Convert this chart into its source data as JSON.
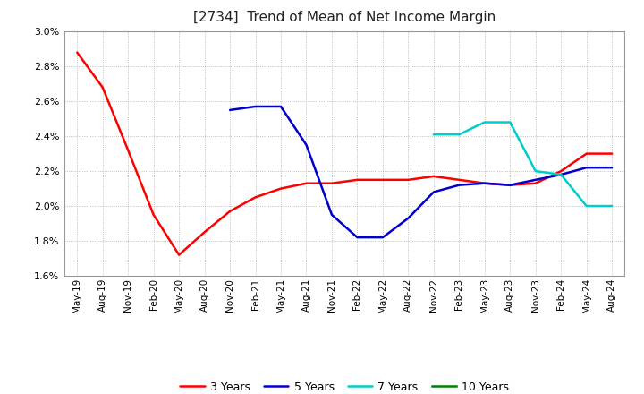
{
  "title": "[2734]  Trend of Mean of Net Income Margin",
  "ylim": [
    0.016,
    0.03
  ],
  "yticks": [
    0.016,
    0.018,
    0.02,
    0.022,
    0.024,
    0.026,
    0.028,
    0.03
  ],
  "x_labels": [
    "May-19",
    "Aug-19",
    "Nov-19",
    "Feb-20",
    "May-20",
    "Aug-20",
    "Nov-20",
    "Feb-21",
    "May-21",
    "Aug-21",
    "Nov-21",
    "Feb-22",
    "May-22",
    "Aug-22",
    "Nov-22",
    "Feb-23",
    "May-23",
    "Aug-23",
    "Nov-23",
    "Feb-24",
    "May-24",
    "Aug-24"
  ],
  "series": {
    "3 Years": {
      "color": "#ff0000",
      "data_x": [
        0,
        1,
        2,
        3,
        4,
        5,
        6,
        7,
        8,
        9,
        10,
        11,
        12,
        13,
        14,
        15,
        16,
        17,
        18,
        19,
        20,
        21
      ],
      "data_y": [
        0.0288,
        0.0268,
        0.0232,
        0.0195,
        0.0172,
        0.0185,
        0.0197,
        0.0205,
        0.021,
        0.0213,
        0.0213,
        0.0215,
        0.0215,
        0.0215,
        0.0217,
        0.0215,
        0.0213,
        0.0212,
        0.0213,
        0.022,
        0.023,
        0.023
      ]
    },
    "5 Years": {
      "color": "#0000cc",
      "data_x": [
        6,
        7,
        8,
        9,
        10,
        11,
        12,
        13,
        14,
        15,
        16,
        17,
        18,
        19,
        20,
        21
      ],
      "data_y": [
        0.0255,
        0.0257,
        0.0257,
        0.0235,
        0.0195,
        0.0182,
        0.0182,
        0.0193,
        0.0208,
        0.0212,
        0.0213,
        0.0212,
        0.0215,
        0.0218,
        0.0222,
        0.0222
      ]
    },
    "7 Years": {
      "color": "#00cccc",
      "data_x": [
        14,
        15,
        16,
        17,
        18,
        19,
        20,
        21
      ],
      "data_y": [
        0.0241,
        0.0241,
        0.0248,
        0.0248,
        0.022,
        0.0218,
        0.02,
        0.02
      ]
    },
    "10 Years": {
      "color": "#008000",
      "data_x": [],
      "data_y": []
    }
  },
  "legend_order": [
    "3 Years",
    "5 Years",
    "7 Years",
    "10 Years"
  ],
  "background_color": "#ffffff",
  "grid_color": "#aaaaaa",
  "figsize": [
    7.2,
    4.4
  ],
  "dpi": 100
}
